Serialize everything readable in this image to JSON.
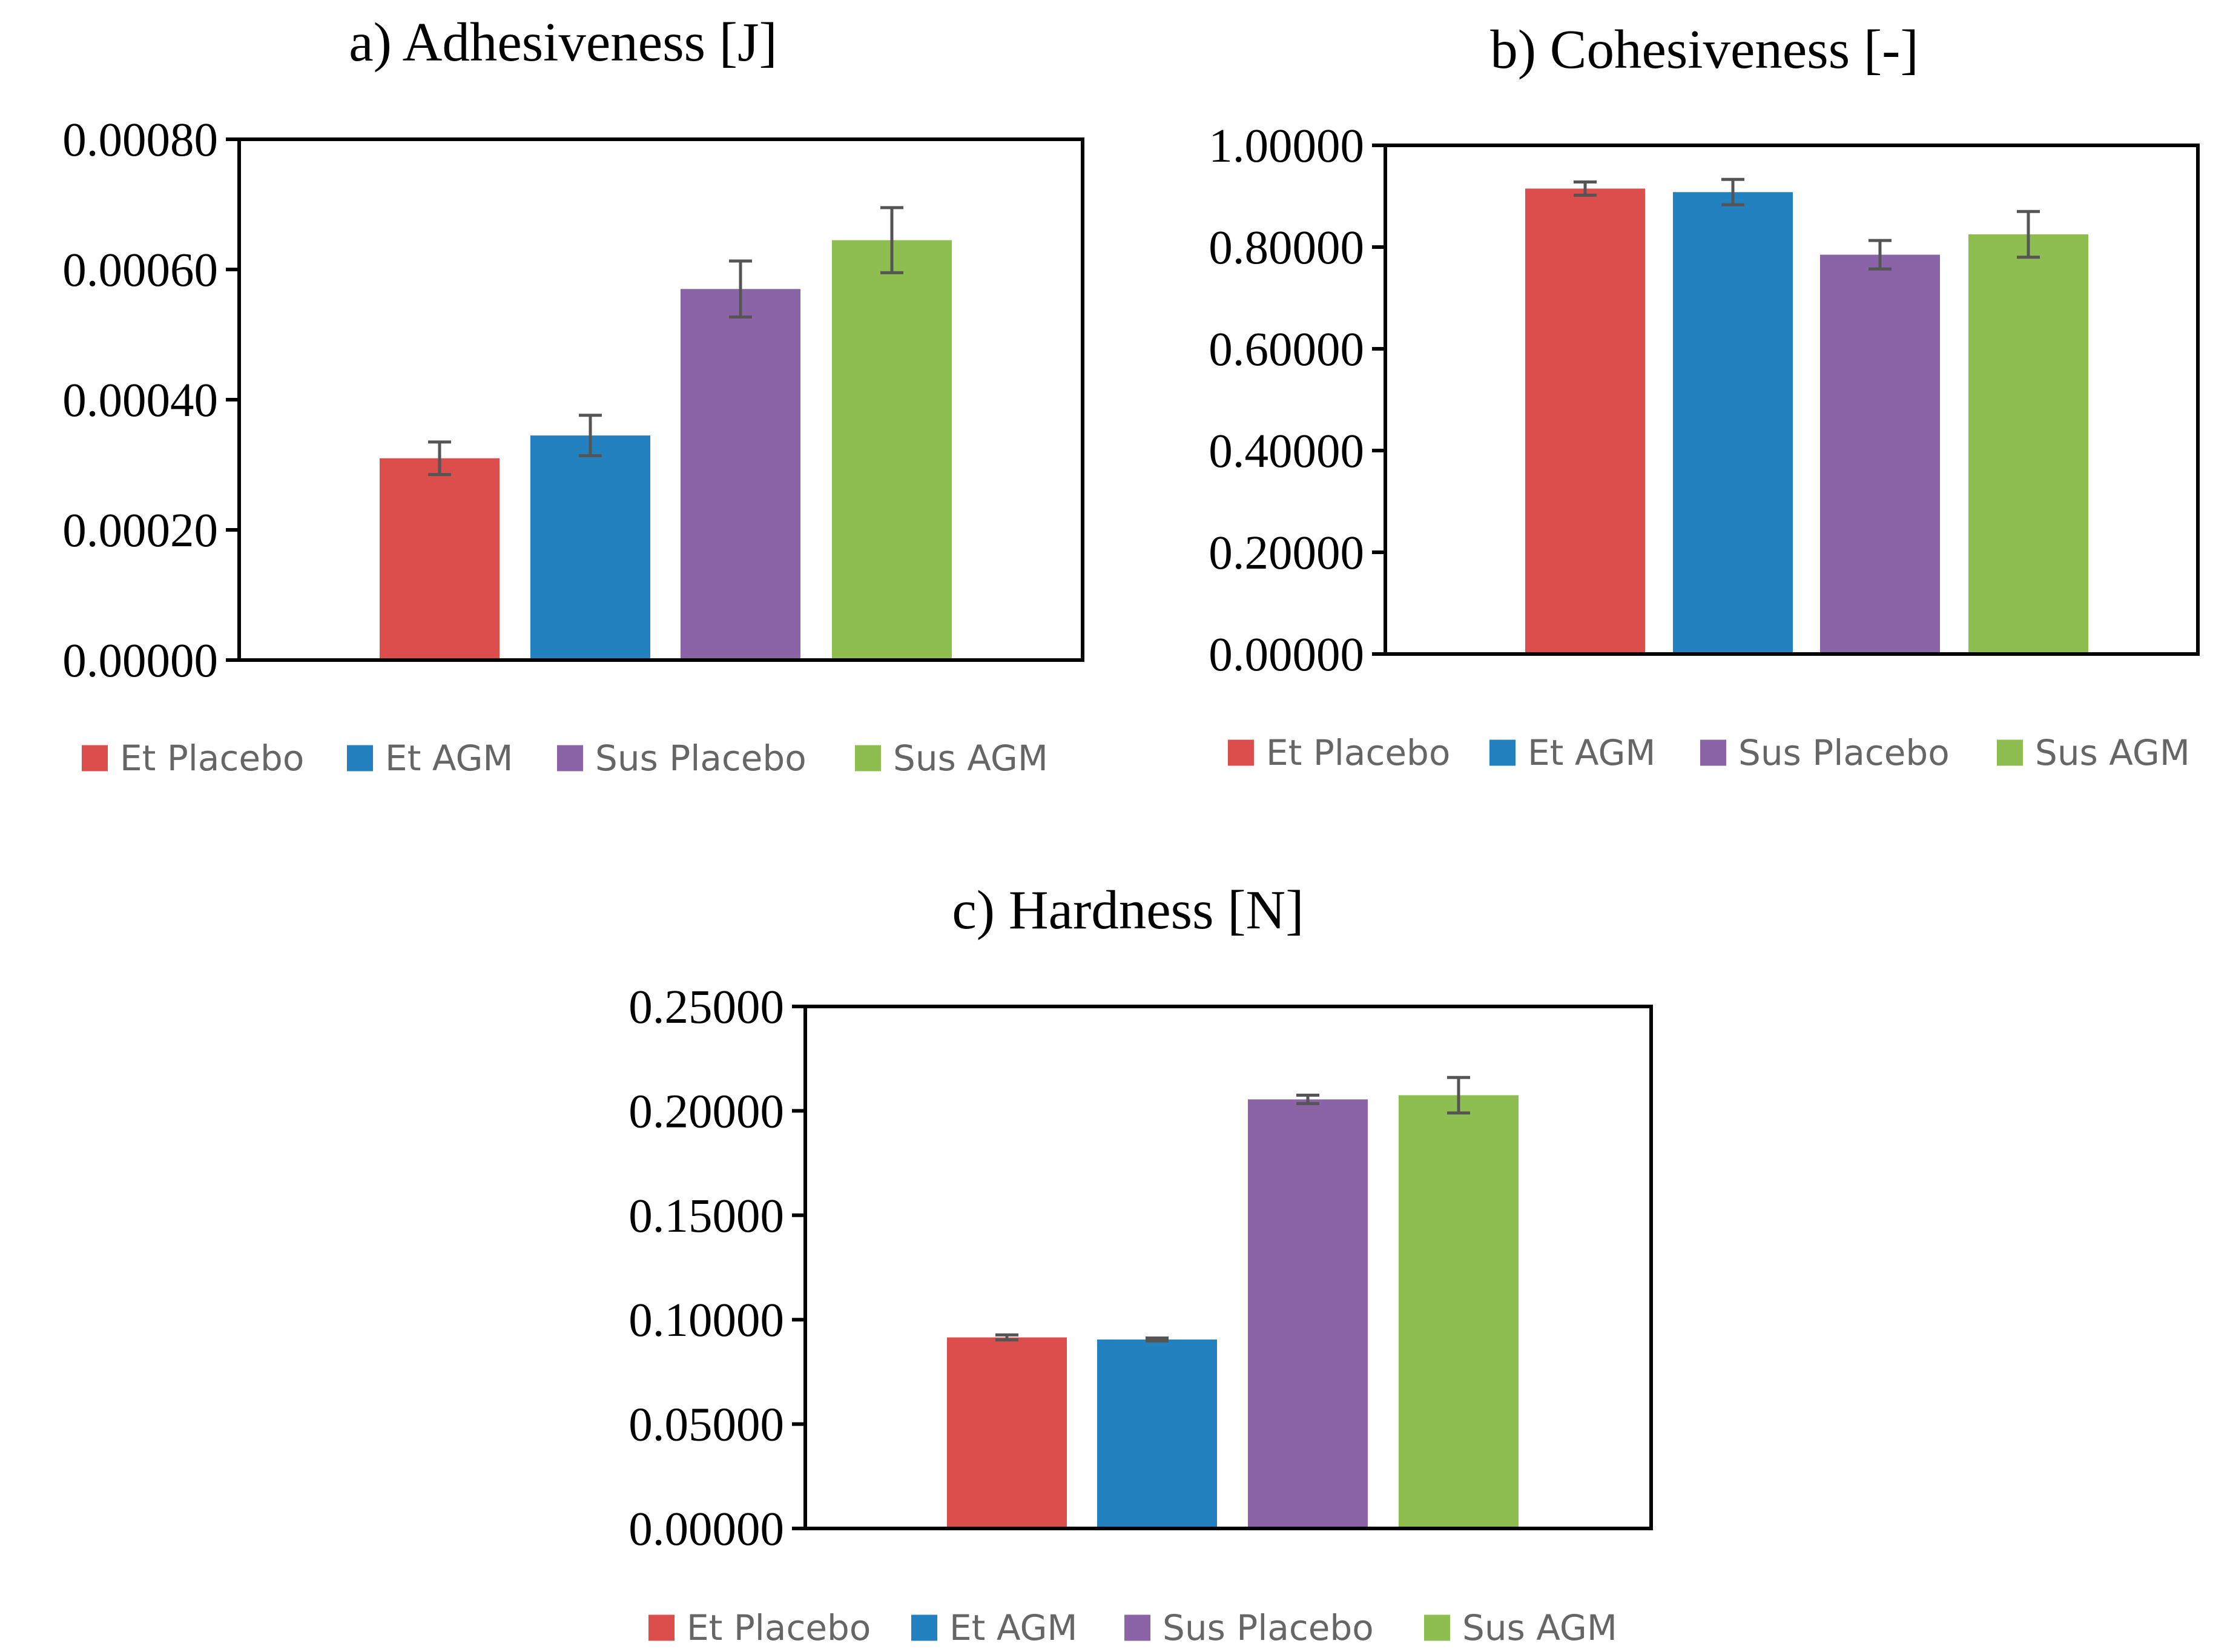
{
  "colors": {
    "Et Placebo": "#DC4E4C",
    "Et AGM": "#2381C0",
    "Sus Placebo": "#8A64A6",
    "Sus AGM": "#8EBE4F",
    "error_bar": "#555555",
    "axis": "#000000"
  },
  "chart_data": [
    {
      "type": "bar",
      "title": "a) Adhesiveness [J]",
      "categories": [
        "Et Placebo",
        "Et AGM",
        "Sus Placebo",
        "Sus AGM"
      ],
      "values": [
        0.00031,
        0.000345,
        0.00057,
        0.000645
      ],
      "errors": [
        2.5e-05,
        3.1e-05,
        4.3e-05,
        5e-05
      ],
      "ylim": [
        0,
        0.0008
      ],
      "yticks": [
        0,
        0.0002,
        0.0004,
        0.0006,
        0.0008
      ],
      "ytick_labels": [
        "0.00000",
        "0.00020",
        "0.00040",
        "0.00060",
        "0.00080"
      ],
      "xlabel": "",
      "ylabel": "",
      "legend": [
        "Et Placebo",
        "Et AGM",
        "Sus Placebo",
        "Sus AGM"
      ],
      "legend_position": "bottom",
      "grid": false
    },
    {
      "type": "bar",
      "title": "b) Cohesiveness [-]",
      "categories": [
        "Et Placebo",
        "Et AGM",
        "Sus Placebo",
        "Sus AGM"
      ],
      "values": [
        0.915,
        0.908,
        0.785,
        0.825
      ],
      "errors": [
        0.013,
        0.025,
        0.028,
        0.045
      ],
      "ylim": [
        0,
        1
      ],
      "yticks": [
        0,
        0.2,
        0.4,
        0.6,
        0.8,
        1.0
      ],
      "ytick_labels": [
        "0.00000",
        "0.20000",
        "0.40000",
        "0.60000",
        "0.80000",
        "1.00000"
      ],
      "xlabel": "",
      "ylabel": "",
      "legend": [
        "Et Placebo",
        "Et AGM",
        "Sus Placebo",
        "Sus AGM"
      ],
      "legend_position": "bottom",
      "grid": false
    },
    {
      "type": "bar",
      "title": "c) Hardness [N]",
      "categories": [
        "Et Placebo",
        "Et AGM",
        "Sus Placebo",
        "Sus AGM"
      ],
      "values": [
        0.0915,
        0.0905,
        0.2055,
        0.2075
      ],
      "errors": [
        0.0012,
        0.0007,
        0.002,
        0.0085
      ],
      "ylim": [
        0,
        0.25
      ],
      "yticks": [
        0,
        0.05,
        0.1,
        0.15,
        0.2,
        0.25
      ],
      "ytick_labels": [
        "0.00000",
        "0.05000",
        "0.10000",
        "0.15000",
        "0.20000",
        "0.25000"
      ],
      "xlabel": "",
      "ylabel": "",
      "legend": [
        "Et Placebo",
        "Et AGM",
        "Sus Placebo",
        "Sus AGM"
      ],
      "legend_position": "bottom",
      "grid": false
    }
  ]
}
